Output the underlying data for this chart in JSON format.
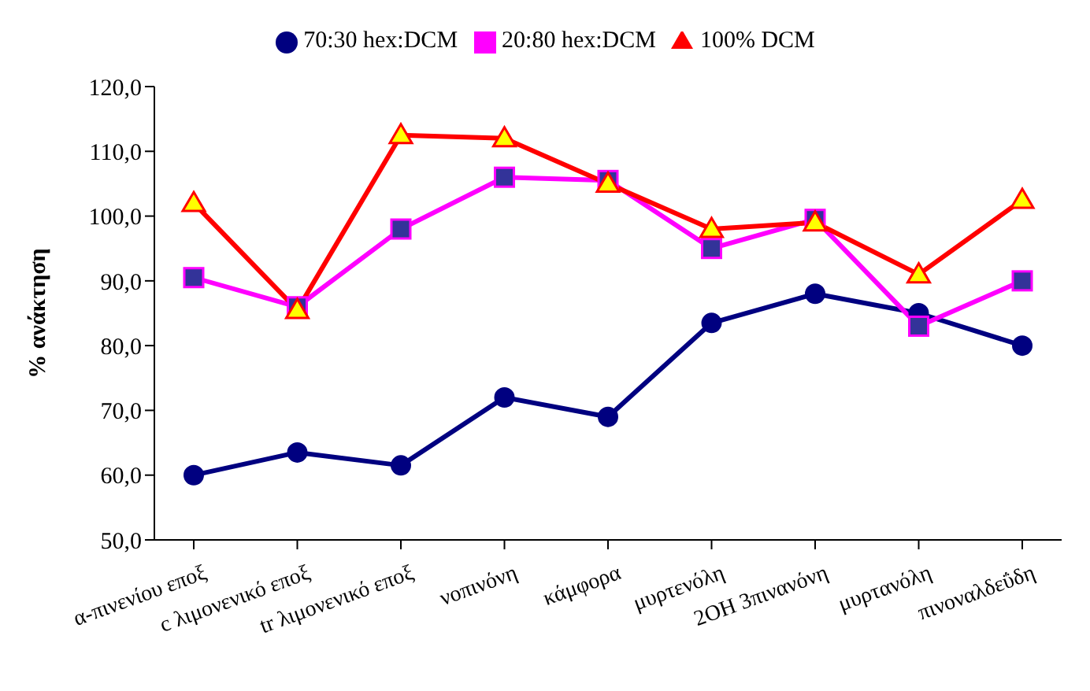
{
  "chart_data": {
    "type": "line",
    "ylabel": "% ανάκτηση",
    "categories": [
      "α-πινενίου εποξ",
      "c λιμονενικό εποξ",
      "tr λιμονενικό εποξ",
      "νοπινόνη",
      "κάμφορα",
      "μυρτενόλη",
      "2OH 3πινανόνη",
      "μυρτανόλη",
      "πινοναλδεΰδη"
    ],
    "series": [
      {
        "name": "70:30 hex:DCM",
        "color": "#000080",
        "marker": "circle",
        "values": [
          60.0,
          63.5,
          61.5,
          72.0,
          69.0,
          83.5,
          88.0,
          85.0,
          80.0
        ]
      },
      {
        "name": "20:80 hex:DCM",
        "color": "#ff00ff",
        "marker": "square",
        "values": [
          90.5,
          86.0,
          98.0,
          106.0,
          105.5,
          95.0,
          99.5,
          83.0,
          90.0
        ]
      },
      {
        "name": "100% DCM",
        "color": "#ff0000",
        "marker": "triangle",
        "values": [
          102.0,
          85.5,
          112.5,
          112.0,
          105.0,
          98.0,
          99.0,
          91.0,
          102.5
        ]
      }
    ],
    "ylim": [
      50,
      120
    ],
    "yticks": [
      {
        "value": 50,
        "label": "50,0"
      },
      {
        "value": 60,
        "label": "60,0"
      },
      {
        "value": 70,
        "label": "70,0"
      },
      {
        "value": 80,
        "label": "80,0"
      },
      {
        "value": 90,
        "label": "90,0"
      },
      {
        "value": 100,
        "label": "100,0"
      },
      {
        "value": 110,
        "label": "110,0"
      },
      {
        "value": 120,
        "label": "120,0"
      }
    ],
    "grid": false,
    "legend": "top"
  }
}
